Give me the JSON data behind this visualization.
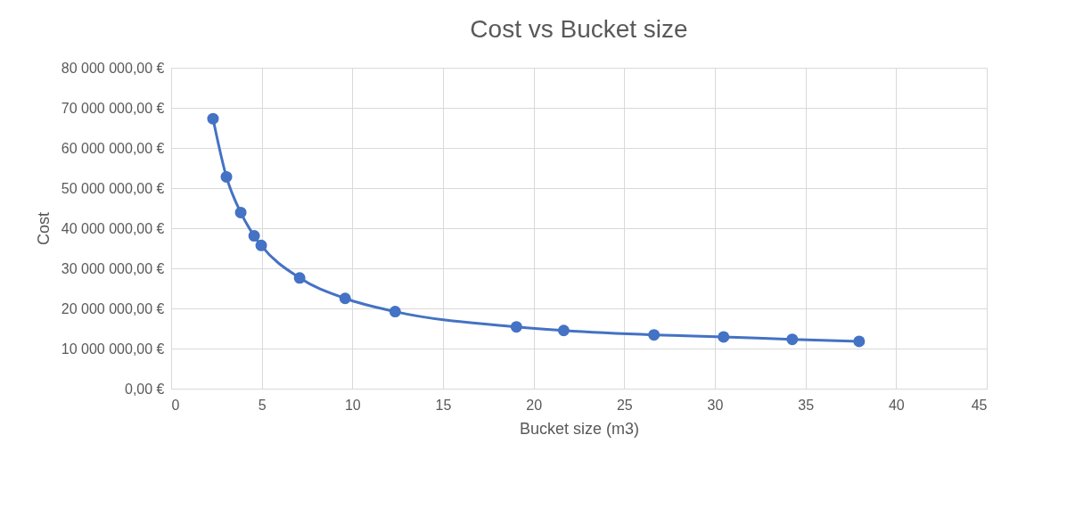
{
  "chart_data": {
    "type": "line",
    "title": "Cost vs Bucket size",
    "xlabel": "Bucket size (m3)",
    "ylabel": "Cost",
    "x": [
      2.31,
      3.05,
      3.84,
      4.58,
      4.97,
      7.09,
      9.6,
      12.36,
      19.05,
      21.66,
      26.64,
      30.48,
      34.27,
      37.96
    ],
    "series": [
      {
        "color": "#4472c4",
        "values": [
          67300000,
          52800000,
          43900000,
          38100000,
          35700000,
          27600000,
          22500000,
          19200000,
          15400000,
          14500000,
          13400000,
          12900000,
          12300000,
          11800000
        ]
      }
    ],
    "xlim": [
      0,
      45
    ],
    "xticks": [
      0,
      5,
      10,
      15,
      20,
      25,
      30,
      35,
      40,
      45
    ],
    "ylim": [
      0,
      80000000
    ],
    "yticks": [
      {
        "value": 0,
        "label": "0,00 €"
      },
      {
        "value": 10000000,
        "label": "10 000 000,00 €"
      },
      {
        "value": 20000000,
        "label": "20 000 000,00 €"
      },
      {
        "value": 30000000,
        "label": "30 000 000,00 €"
      },
      {
        "value": 40000000,
        "label": "40 000 000,00 €"
      },
      {
        "value": 50000000,
        "label": "50 000 000,00 €"
      },
      {
        "value": 60000000,
        "label": "60 000 000,00 €"
      },
      {
        "value": 70000000,
        "label": "70 000 000,00 €"
      },
      {
        "value": 80000000,
        "label": "80 000 000,00 €"
      }
    ],
    "grid": true,
    "marker": "circle",
    "line_style": "solid"
  }
}
